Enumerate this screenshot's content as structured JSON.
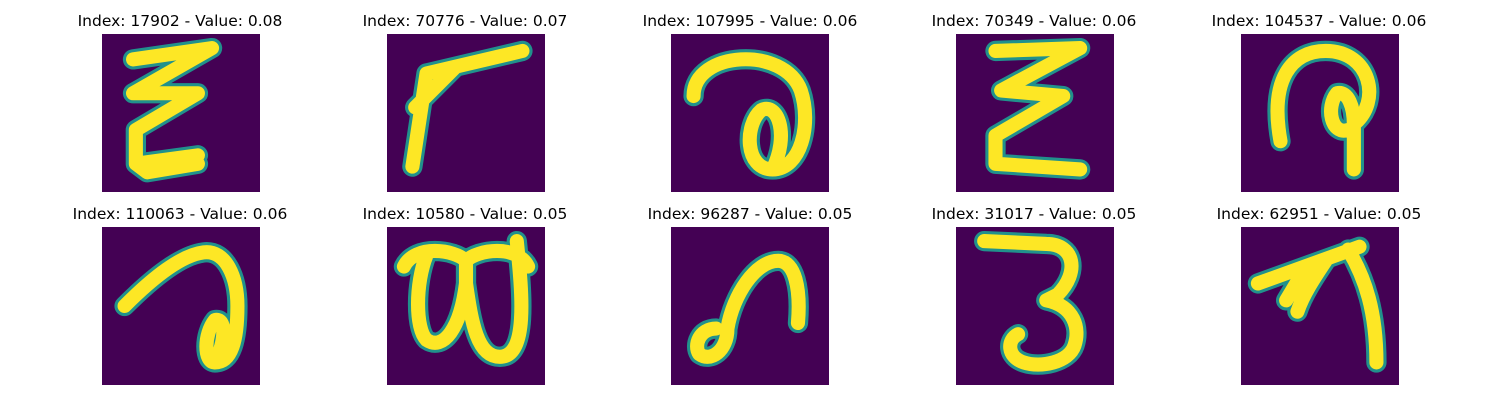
{
  "figure": {
    "colormap": "viridis",
    "background_color": "#440154",
    "stroke_color": "#FDE725",
    "edge_color": "#21918C"
  },
  "panels": [
    {
      "title": "Index: 17902 - Value: 0.08",
      "glyph": "zigzag-e"
    },
    {
      "title": "Index: 70776 - Value: 0.07",
      "glyph": "angled-r"
    },
    {
      "title": "Index: 107995 - Value: 0.06",
      "glyph": "loop-a"
    },
    {
      "title": "Index: 70349 - Value: 0.06",
      "glyph": "zigzag-e"
    },
    {
      "title": "Index: 104537 - Value: 0.06",
      "glyph": "hook-loop"
    },
    {
      "title": "Index: 110063 - Value: 0.06",
      "glyph": "loop-a"
    },
    {
      "title": "Index: 10580 - Value: 0.05",
      "glyph": "double-loop"
    },
    {
      "title": "Index: 96287 - Value: 0.05",
      "glyph": "curl"
    },
    {
      "title": "Index: 31017 - Value: 0.05",
      "glyph": "three"
    },
    {
      "title": "Index: 62951 - Value: 0.05",
      "glyph": "branch"
    }
  ]
}
